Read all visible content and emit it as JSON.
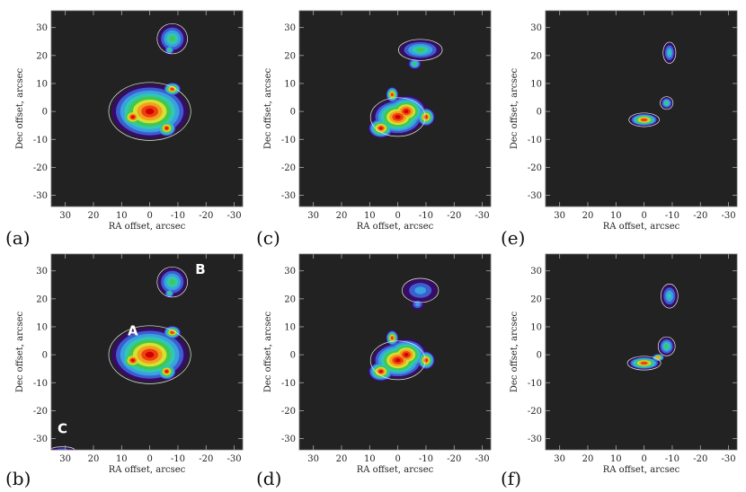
{
  "chart_data": [
    {
      "panel": "(a)",
      "type": "heatmap",
      "xlabel": "RA offset, arcsec",
      "ylabel": "Dec offset, arcsec",
      "xlim": [
        35,
        -33
      ],
      "ylim": [
        -34,
        36
      ],
      "xticks": [
        30,
        20,
        10,
        0,
        -10,
        -20,
        -30
      ],
      "yticks": [
        30,
        20,
        10,
        0,
        -10,
        -20,
        -30
      ],
      "colormap": [
        "#3a0a6a",
        "#3c5fd0",
        "#3aa0e0",
        "#30c8b0",
        "#40c850",
        "#d8e030",
        "#f0a020",
        "#f04010",
        "#d00000"
      ],
      "background": "#222222",
      "labels": [],
      "sources": [
        {
          "x": 0,
          "y": 0,
          "level": 1.0,
          "blobs": [
            [
              0,
              0,
              1.5,
              1.2,
              1.0
            ],
            [
              6,
              -2,
              0.85,
              0.8,
              0.35
            ],
            [
              -8,
              8,
              0.7,
              0.6,
              0.25
            ],
            [
              -6,
              -6,
              0.7,
              0.7,
              0.3
            ]
          ],
          "spread_x": 9,
          "spread_y": 8
        },
        {
          "x": -8,
          "y": 26,
          "level": 0.55,
          "blobs": [
            [
              0,
              0,
              1.0,
              1.0,
              1.0
            ],
            [
              1,
              -4,
              0.6,
              0.6,
              0.35
            ]
          ],
          "spread_x": 5,
          "spread_y": 5
        }
      ]
    },
    {
      "panel": "(c)",
      "type": "heatmap",
      "xlabel": "RA offset, arcsec",
      "ylabel": "Dec offset, arcsec",
      "xlim": [
        35,
        -33
      ],
      "ylim": [
        -34,
        36
      ],
      "xticks": [
        30,
        20,
        10,
        0,
        -10,
        -20,
        -30
      ],
      "yticks": [
        30,
        20,
        10,
        0,
        -10,
        -20,
        -30
      ],
      "labels": [],
      "sources": [
        {
          "x": 0,
          "y": -2,
          "level": 1.0,
          "blobs": [
            [
              0,
              0,
              1.0,
              0.8,
              1.0
            ],
            [
              -3,
              2,
              0.9,
              0.8,
              0.8
            ],
            [
              6,
              -4,
              0.8,
              0.7,
              0.4
            ],
            [
              -10,
              0,
              0.6,
              0.7,
              0.35
            ],
            [
              2,
              8,
              0.5,
              0.7,
              0.25
            ]
          ],
          "spread_x": 9,
          "spread_y": 8
        },
        {
          "x": -8,
          "y": 22,
          "level": 0.5,
          "blobs": [
            [
              0,
              0,
              1.2,
              0.7,
              1.0
            ],
            [
              2,
              -5,
              0.6,
              0.6,
              0.45
            ]
          ],
          "spread_x": 6,
          "spread_y": 5
        }
      ]
    },
    {
      "panel": "(e)",
      "type": "heatmap",
      "xlabel": "RA offset, arcsec",
      "ylabel": "Dec offset, arcsec",
      "xlim": [
        35,
        -33
      ],
      "ylim": [
        -34,
        36
      ],
      "xticks": [
        30,
        20,
        10,
        0,
        -10,
        -20,
        -30
      ],
      "yticks": [
        30,
        20,
        10,
        0,
        -10,
        -20,
        -30
      ],
      "labels": [],
      "sources": [
        {
          "x": 0,
          "y": -3,
          "level": 1.0,
          "blobs": [
            [
              0,
              0,
              1.0,
              0.65,
              1.0
            ]
          ],
          "spread_x": 5,
          "spread_y": 3.5
        },
        {
          "x": -8,
          "y": 3,
          "level": 0.5,
          "blobs": [
            [
              0,
              0,
              0.7,
              0.7,
              1.0
            ]
          ],
          "spread_x": 3,
          "spread_y": 3
        },
        {
          "x": -9,
          "y": 21,
          "level": 0.45,
          "blobs": [
            [
              0,
              0,
              0.7,
              1.0,
              1.0
            ]
          ],
          "spread_x": 3,
          "spread_y": 3.5
        }
      ]
    },
    {
      "panel": "(b)",
      "type": "heatmap",
      "xlabel": "RA offset, arcsec",
      "ylabel": "Dec offset, arcsec",
      "xlim": [
        35,
        -33
      ],
      "ylim": [
        -34,
        36
      ],
      "xticks": [
        30,
        20,
        10,
        0,
        -10,
        -20,
        -30
      ],
      "yticks": [
        30,
        20,
        10,
        0,
        -10,
        -20,
        -30
      ],
      "labels": [
        {
          "text": "A",
          "x": 6,
          "y": 7
        },
        {
          "text": "B",
          "x": -18,
          "y": 29
        },
        {
          "text": "C",
          "x": 31,
          "y": -28
        }
      ],
      "sources": [
        {
          "x": 0,
          "y": 0,
          "level": 1.0,
          "blobs": [
            [
              0,
              0,
              1.5,
              1.2,
              1.0
            ],
            [
              6,
              -2,
              0.85,
              0.8,
              0.35
            ],
            [
              -8,
              8,
              0.7,
              0.6,
              0.25
            ],
            [
              -6,
              -6,
              0.7,
              0.7,
              0.3
            ]
          ],
          "spread_x": 9,
          "spread_y": 8
        },
        {
          "x": -8,
          "y": 26,
          "level": 0.55,
          "blobs": [
            [
              0,
              0,
              1.0,
              1.0,
              1.0
            ],
            [
              1,
              -4,
              0.6,
              0.6,
              0.35
            ]
          ],
          "spread_x": 5,
          "spread_y": 5
        },
        {
          "x": 31,
          "y": -34,
          "level": 0.15,
          "blobs": [
            [
              0,
              0,
              1.0,
              0.5,
              1.0
            ]
          ],
          "spread_x": 4,
          "spread_y": 2
        }
      ]
    },
    {
      "panel": "(d)",
      "type": "heatmap",
      "xlabel": "RA offset, arcsec",
      "ylabel": "Dec offset, arcsec",
      "xlim": [
        35,
        -33
      ],
      "ylim": [
        -34,
        36
      ],
      "xticks": [
        30,
        20,
        10,
        0,
        -10,
        -20,
        -30
      ],
      "yticks": [
        30,
        20,
        10,
        0,
        -10,
        -20,
        -30
      ],
      "labels": [],
      "sources": [
        {
          "x": 0,
          "y": -2,
          "level": 1.0,
          "blobs": [
            [
              0,
              0,
              1.0,
              0.8,
              1.0
            ],
            [
              -3,
              2,
              0.9,
              0.8,
              0.8
            ],
            [
              6,
              -4,
              0.8,
              0.7,
              0.4
            ],
            [
              -10,
              0,
              0.6,
              0.7,
              0.35
            ],
            [
              2,
              8,
              0.5,
              0.7,
              0.25
            ]
          ],
          "spread_x": 9,
          "spread_y": 8
        },
        {
          "x": -8,
          "y": 23,
          "level": 0.35,
          "blobs": [
            [
              0,
              0,
              1.0,
              0.8,
              1.0
            ],
            [
              1,
              -5,
              0.6,
              0.6,
              0.45
            ]
          ],
          "spread_x": 6,
          "spread_y": 5
        }
      ]
    },
    {
      "panel": "(f)",
      "type": "heatmap",
      "xlabel": "RA offset, arcsec",
      "ylabel": "Dec offset, arcsec",
      "xlim": [
        35,
        -33
      ],
      "ylim": [
        -34,
        36
      ],
      "xticks": [
        30,
        20,
        10,
        0,
        -10,
        -20,
        -30
      ],
      "yticks": [
        30,
        20,
        10,
        0,
        -10,
        -20,
        -30
      ],
      "labels": [],
      "sources": [
        {
          "x": 0,
          "y": -3,
          "level": 1.0,
          "blobs": [
            [
              0,
              0,
              1.0,
              0.65,
              1.0
            ],
            [
              -5,
              2,
              0.6,
              0.6,
              0.45
            ]
          ],
          "spread_x": 5.5,
          "spread_y": 3.5
        },
        {
          "x": -8,
          "y": 3,
          "level": 0.55,
          "blobs": [
            [
              0,
              0,
              0.8,
              0.9,
              1.0
            ]
          ],
          "spread_x": 3.5,
          "spread_y": 3.5
        },
        {
          "x": -9,
          "y": 21,
          "level": 0.45,
          "blobs": [
            [
              0,
              0,
              0.8,
              1.0,
              1.0
            ]
          ],
          "spread_x": 3.5,
          "spread_y": 4
        }
      ]
    }
  ]
}
